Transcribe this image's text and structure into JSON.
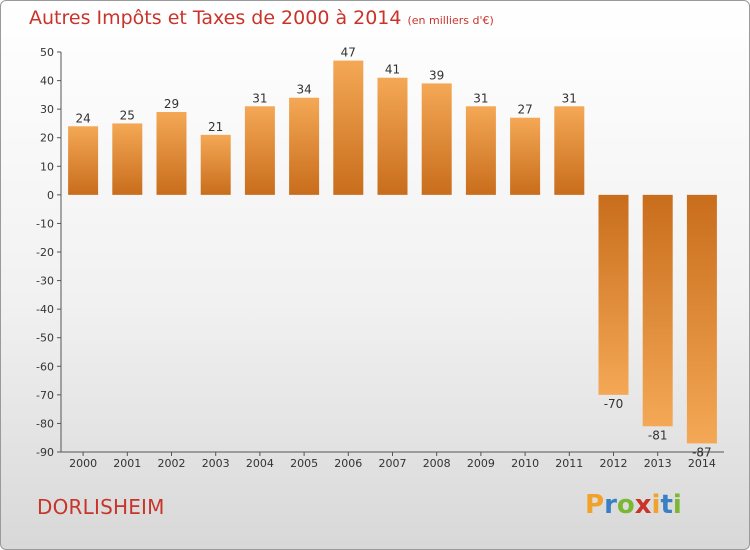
{
  "title": "Autres Impôts et Taxes de 2000 à 2014",
  "subtitle": "(en milliers d'€)",
  "city": "DORLISHEIM",
  "logo": {
    "letters": [
      "P",
      "r",
      "o",
      "x",
      "i",
      "t",
      "i"
    ],
    "colors": [
      "#f2a12a",
      "#3a7fc4",
      "#7ab733",
      "#c9342a",
      "#f2a12a",
      "#3a7fc4",
      "#7ab733"
    ]
  },
  "colors": {
    "bar_light": "#f4a855",
    "bar_dark": "#c86d1c",
    "title": "#c9342a"
  },
  "chart_data": {
    "type": "bar",
    "categories": [
      "2000",
      "2001",
      "2002",
      "2003",
      "2004",
      "2005",
      "2006",
      "2007",
      "2008",
      "2009",
      "2010",
      "2011",
      "2012",
      "2013",
      "2014"
    ],
    "values": [
      24,
      25,
      29,
      21,
      31,
      34,
      47,
      41,
      39,
      31,
      27,
      31,
      -70,
      -81,
      -87
    ],
    "ylim": [
      -90,
      50
    ],
    "yticks": [
      50,
      40,
      30,
      20,
      10,
      0,
      -10,
      -20,
      -30,
      -40,
      -50,
      -60,
      -70,
      -80,
      -90
    ],
    "grid": false,
    "legend": "none"
  }
}
